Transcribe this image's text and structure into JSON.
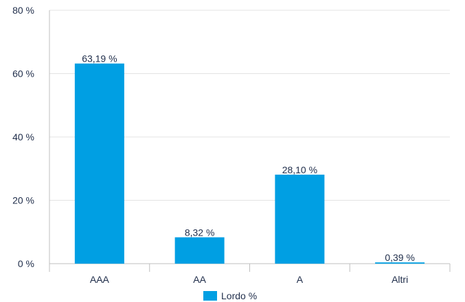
{
  "chart_data": {
    "type": "bar",
    "categories": [
      "AAA",
      "AA",
      "A",
      "Altri"
    ],
    "series": [
      {
        "name": "Lordo %",
        "values": [
          63.19,
          8.32,
          28.1,
          0.39
        ],
        "color": "#009fe3"
      }
    ],
    "data_labels": [
      "63,19 %",
      "8,32 %",
      "28,10 %",
      "0,39 %"
    ],
    "y_ticks": [
      {
        "value": 0,
        "label": "0 %"
      },
      {
        "value": 20,
        "label": "20 %"
      },
      {
        "value": 40,
        "label": "40 %"
      },
      {
        "value": 60,
        "label": "60 %"
      },
      {
        "value": 80,
        "label": "80 %"
      }
    ],
    "ylim": [
      0,
      80
    ],
    "grid": true,
    "legend_position": "bottom",
    "legend_label": "Lordo %",
    "grid_color": "#e3e3e3",
    "axis_color": "#bfbfbf",
    "text_color": "#1f2d4a"
  }
}
